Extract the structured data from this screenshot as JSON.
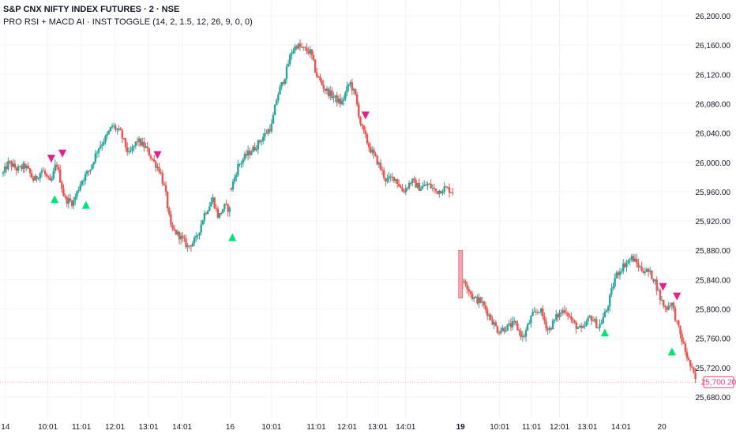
{
  "symbol": {
    "title": "S&P CNX NIFTY INDEX FUTURES · 2 · NSE",
    "indicator": "PRO RSI + MACD AI · INST TOGGLE (14, 2, 1.5, 12, 26, 9, 0, 0)"
  },
  "colors": {
    "up": "#26a69a",
    "down": "#ef5350",
    "gap_candle": "#f7a1b4",
    "sell_marker": "#e91e8c",
    "buy_marker": "#00e676",
    "price_tag": "#f23d7a",
    "grid": "#f0f3fa",
    "text": "#131722"
  },
  "chart_data": {
    "type": "candlestick",
    "ylim": [
      25660,
      26220
    ],
    "y_ticks": [
      26200,
      26160,
      26120,
      26080,
      26040,
      26000,
      25960,
      25920,
      25880,
      25840,
      25800,
      25760,
      25720,
      25680
    ],
    "y_tick_labels": [
      "26,200.00",
      "26,160.00",
      "26,120.00",
      "26,080.00",
      "26,040.00",
      "26,000.00",
      "25,960.00",
      "25,920.00",
      "25,880.00",
      "25,840.00",
      "25,800.00",
      "25,760.00",
      "25,720.00",
      "25,680.00"
    ],
    "x_ticks": [
      {
        "label": "14",
        "bar": 4,
        "bold": false
      },
      {
        "label": "10:01",
        "bar": 80,
        "bold": false
      },
      {
        "label": "11:01",
        "bar": 140,
        "bold": false
      },
      {
        "label": "12:01",
        "bar": 200,
        "bold": false
      },
      {
        "label": "13:01",
        "bar": 260,
        "bold": false
      },
      {
        "label": "14:01",
        "bar": 320,
        "bold": false
      },
      {
        "label": "16",
        "bar": 406,
        "bold": false
      },
      {
        "label": "10:01",
        "bar": 480,
        "bold": false
      },
      {
        "label": "11:01",
        "bar": 560,
        "bold": false
      },
      {
        "label": "12:01",
        "bar": 615,
        "bold": false
      },
      {
        "label": "13:01",
        "bar": 670,
        "bold": false
      },
      {
        "label": "14:01",
        "bar": 720,
        "bold": false
      },
      {
        "label": "19",
        "bar": 818,
        "bold": true
      },
      {
        "label": "10:01",
        "bar": 888,
        "bold": false
      },
      {
        "label": "11:01",
        "bar": 945,
        "bold": false
      },
      {
        "label": "12:01",
        "bar": 995,
        "bold": false
      },
      {
        "label": "13:01",
        "bar": 1045,
        "bold": false
      },
      {
        "label": "14:01",
        "bar": 1105,
        "bold": false
      },
      {
        "label": "20",
        "bar": 1178,
        "bold": false
      }
    ],
    "total_bars": 1240,
    "segments": [
      {
        "start": 0,
        "path": [
          [
            0,
            25985
          ],
          [
            10,
            26000
          ],
          [
            25,
            25990
          ],
          [
            40,
            25995
          ],
          [
            55,
            25975
          ],
          [
            70,
            25990
          ],
          [
            85,
            25970
          ],
          [
            95,
            26000
          ],
          [
            110,
            25950
          ],
          [
            125,
            25945
          ],
          [
            140,
            25975
          ],
          [
            155,
            25990
          ],
          [
            170,
            26020
          ],
          [
            185,
            26035
          ],
          [
            195,
            26050
          ],
          [
            210,
            26040
          ],
          [
            225,
            26010
          ],
          [
            240,
            26030
          ],
          [
            255,
            26020
          ],
          [
            270,
            26000
          ],
          [
            280,
            25990
          ],
          [
            290,
            25960
          ],
          [
            300,
            25910
          ],
          [
            315,
            25900
          ],
          [
            330,
            25885
          ],
          [
            345,
            25895
          ],
          [
            360,
            25930
          ],
          [
            375,
            25950
          ],
          [
            385,
            25925
          ],
          [
            395,
            25940
          ],
          [
            406,
            25935
          ]
        ]
      },
      {
        "start": 408,
        "path": [
          [
            408,
            25965
          ],
          [
            420,
            25995
          ],
          [
            435,
            26010
          ],
          [
            450,
            26020
          ],
          [
            465,
            26035
          ],
          [
            480,
            26050
          ],
          [
            490,
            26090
          ],
          [
            505,
            26120
          ],
          [
            515,
            26150
          ],
          [
            525,
            26160
          ],
          [
            535,
            26155
          ],
          [
            550,
            26150
          ],
          [
            560,
            26120
          ],
          [
            575,
            26100
          ],
          [
            590,
            26090
          ],
          [
            605,
            26080
          ],
          [
            620,
            26110
          ],
          [
            630,
            26090
          ],
          [
            640,
            26050
          ],
          [
            655,
            26020
          ],
          [
            670,
            26000
          ],
          [
            685,
            25975
          ],
          [
            700,
            25980
          ],
          [
            715,
            25960
          ],
          [
            730,
            25975
          ],
          [
            745,
            25965
          ],
          [
            760,
            25970
          ],
          [
            775,
            25960
          ],
          [
            790,
            25965
          ],
          [
            805,
            25960
          ]
        ]
      },
      {
        "start": 818,
        "path": [
          [
            818,
            25830
          ],
          [
            825,
            25840
          ],
          [
            840,
            25815
          ],
          [
            855,
            25810
          ],
          [
            870,
            25790
          ],
          [
            885,
            25770
          ],
          [
            900,
            25775
          ],
          [
            915,
            25780
          ],
          [
            930,
            25760
          ],
          [
            945,
            25790
          ],
          [
            960,
            25800
          ],
          [
            975,
            25770
          ],
          [
            990,
            25790
          ],
          [
            1005,
            25800
          ],
          [
            1020,
            25780
          ],
          [
            1035,
            25770
          ],
          [
            1050,
            25790
          ],
          [
            1065,
            25775
          ],
          [
            1080,
            25800
          ],
          [
            1095,
            25845
          ],
          [
            1110,
            25860
          ],
          [
            1125,
            25870
          ],
          [
            1140,
            25855
          ],
          [
            1155,
            25850
          ],
          [
            1165,
            25840
          ],
          [
            1175,
            25815
          ],
          [
            1185,
            25800
          ],
          [
            1195,
            25810
          ],
          [
            1205,
            25780
          ],
          [
            1215,
            25755
          ],
          [
            1225,
            25730
          ],
          [
            1240,
            25700
          ]
        ]
      }
    ],
    "gap_candle": {
      "bar": 818,
      "open": 25880,
      "close": 25815,
      "high": 25880,
      "low": 25800
    },
    "sell_signals": [
      {
        "bar": 86,
        "price": 26005
      },
      {
        "bar": 106,
        "price": 26012
      },
      {
        "bar": 276,
        "price": 26010
      },
      {
        "bar": 648,
        "price": 26064
      },
      {
        "bar": 1180,
        "price": 25830
      },
      {
        "bar": 1205,
        "price": 25817
      }
    ],
    "buy_signals": [
      {
        "bar": 92,
        "price": 25950
      },
      {
        "bar": 148,
        "price": 25942
      },
      {
        "bar": 410,
        "price": 25898
      },
      {
        "bar": 1076,
        "price": 25768
      },
      {
        "bar": 1196,
        "price": 25742
      }
    ],
    "last_price": 25700.2,
    "last_price_label": "25,700.20"
  }
}
